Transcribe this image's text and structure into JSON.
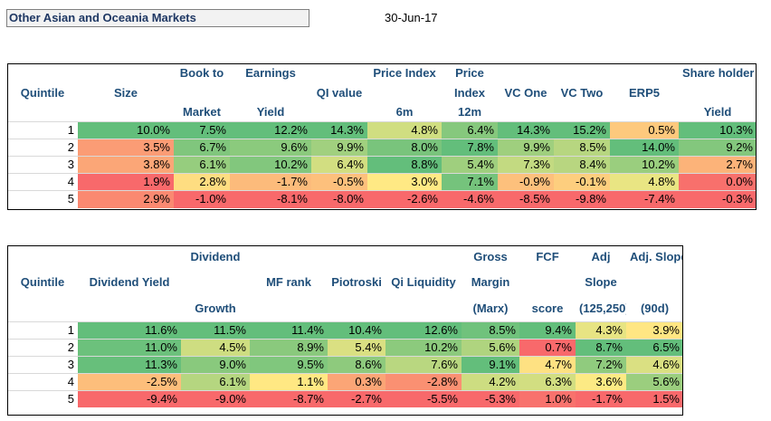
{
  "title": "Other Asian and Oceania Markets",
  "date": "30-Jun-17",
  "colors": {
    "green": "#63be7b",
    "yellow": "#ffeb84",
    "red": "#f8696b"
  },
  "table1": {
    "headers": [
      [
        "",
        "",
        "Book to",
        "Earnings",
        "",
        "Price Index",
        "Price",
        "",
        "",
        "",
        "Share holder"
      ],
      [
        "Quintile",
        "Size",
        "",
        "",
        "QI value",
        "",
        "Index",
        "VC One",
        "VC Two",
        "ERP5",
        ""
      ],
      [
        "",
        "",
        "Market",
        "Yield",
        "",
        "6m",
        "12m",
        "",
        "",
        "",
        "Yield"
      ]
    ],
    "rows": [
      {
        "q": "1",
        "vals": [
          "10.0%",
          "7.5%",
          "12.2%",
          "14.3%",
          "4.8%",
          "6.4%",
          "14.3%",
          "15.2%",
          "0.5%",
          "10.3%"
        ]
      },
      {
        "q": "2",
        "vals": [
          "3.5%",
          "6.7%",
          "9.6%",
          "9.9%",
          "8.0%",
          "7.8%",
          "9.9%",
          "8.5%",
          "14.0%",
          "9.2%"
        ]
      },
      {
        "q": "3",
        "vals": [
          "3.8%",
          "6.1%",
          "10.2%",
          "6.4%",
          "8.8%",
          "5.4%",
          "7.3%",
          "8.4%",
          "10.2%",
          "2.7%"
        ]
      },
      {
        "q": "4",
        "vals": [
          "1.9%",
          "2.8%",
          "-1.7%",
          "-0.5%",
          "3.0%",
          "7.1%",
          "-0.9%",
          "-0.1%",
          "4.8%",
          "0.0%"
        ]
      },
      {
        "q": "5",
        "vals": [
          "2.9%",
          "-1.0%",
          "-8.1%",
          "-8.0%",
          "-2.6%",
          "-4.6%",
          "-8.5%",
          "-9.8%",
          "-7.4%",
          "-0.3%"
        ]
      }
    ]
  },
  "table2": {
    "headers": [
      [
        "",
        "",
        "Dividend",
        "",
        "",
        "",
        "Gross",
        "FCF",
        "Adj",
        "Adj. Slope"
      ],
      [
        "Quintile",
        "Dividend Yield",
        "",
        "MF rank",
        "Piotroski",
        "Qi Liquidity",
        "Margin",
        "",
        "Slope",
        ""
      ],
      [
        "",
        "",
        "Growth",
        "",
        "",
        "",
        "(Marx)",
        "score",
        "(125,250)",
        "(90d)"
      ]
    ],
    "rows": [
      {
        "q": "1",
        "vals": [
          "11.6%",
          "11.5%",
          "11.4%",
          "10.4%",
          "12.6%",
          "8.5%",
          "9.4%",
          "4.3%",
          "3.9%"
        ]
      },
      {
        "q": "2",
        "vals": [
          "11.0%",
          "4.5%",
          "8.9%",
          "5.4%",
          "10.2%",
          "5.6%",
          "0.7%",
          "8.7%",
          "6.5%"
        ]
      },
      {
        "q": "3",
        "vals": [
          "11.3%",
          "9.0%",
          "9.5%",
          "8.6%",
          "7.6%",
          "9.1%",
          "4.7%",
          "7.2%",
          "4.6%"
        ]
      },
      {
        "q": "4",
        "vals": [
          "-2.5%",
          "6.1%",
          "1.1%",
          "0.3%",
          "-2.8%",
          "4.2%",
          "6.3%",
          "3.6%",
          "5.6%"
        ]
      },
      {
        "q": "5",
        "vals": [
          "-9.4%",
          "-9.0%",
          "-8.7%",
          "-2.7%",
          "-5.5%",
          "-5.3%",
          "1.0%",
          "-1.7%",
          "1.5%"
        ]
      }
    ]
  }
}
